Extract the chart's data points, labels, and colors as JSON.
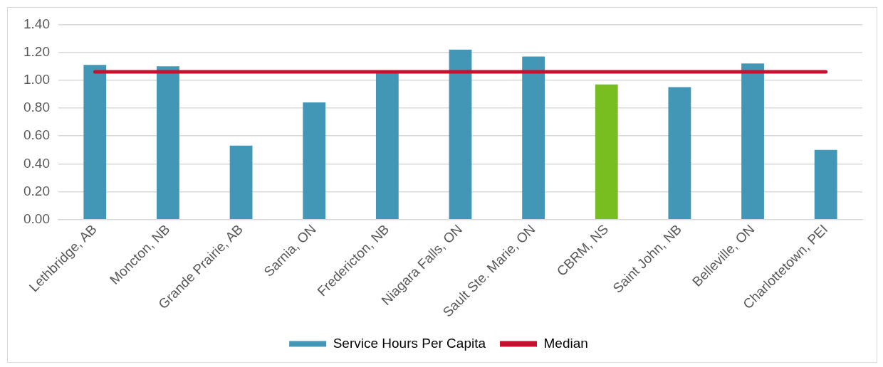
{
  "chart_data": {
    "type": "bar",
    "categories": [
      "Lethbridge, AB",
      "Moncton, NB",
      "Grande Prairie, AB",
      "Sarnia, ON",
      "Fredericton, NB",
      "Niagara Falls, ON",
      "Sault Ste. Marie, ON",
      "CBRM, NS",
      "Saint John, NB",
      "Belleville, ON",
      "Charlottetown, PEI"
    ],
    "series": [
      {
        "name": "Service Hours Per Capita",
        "color": "#4397b6",
        "colors": [
          "#4397b6",
          "#4397b6",
          "#4397b6",
          "#4397b6",
          "#4397b6",
          "#4397b6",
          "#4397b6",
          "#78be21",
          "#4397b6",
          "#4397b6",
          "#4397b6"
        ],
        "values": [
          1.11,
          1.1,
          0.53,
          0.84,
          1.06,
          1.22,
          1.17,
          0.97,
          0.95,
          1.12,
          0.5
        ]
      },
      {
        "name": "Median",
        "type": "line",
        "color": "#c8102e",
        "values": [
          1.06,
          1.06,
          1.06,
          1.06,
          1.06,
          1.06,
          1.06,
          1.06,
          1.06,
          1.06,
          1.06
        ]
      }
    ],
    "ylim": [
      0,
      1.4
    ],
    "yticks": [
      {
        "value": 0,
        "label": "0.00"
      },
      {
        "value": 0.2,
        "label": "0.20"
      },
      {
        "value": 0.4,
        "label": "0.40"
      },
      {
        "value": 0.6,
        "label": "0.60"
      },
      {
        "value": 0.8,
        "label": "0.80"
      },
      {
        "value": 1,
        "label": "1.00"
      },
      {
        "value": 1.2,
        "label": "1.20"
      },
      {
        "value": 1.4,
        "label": "1.40"
      }
    ],
    "grid": "y",
    "legend": "bottom",
    "marker": "none",
    "line_style": "solid"
  }
}
